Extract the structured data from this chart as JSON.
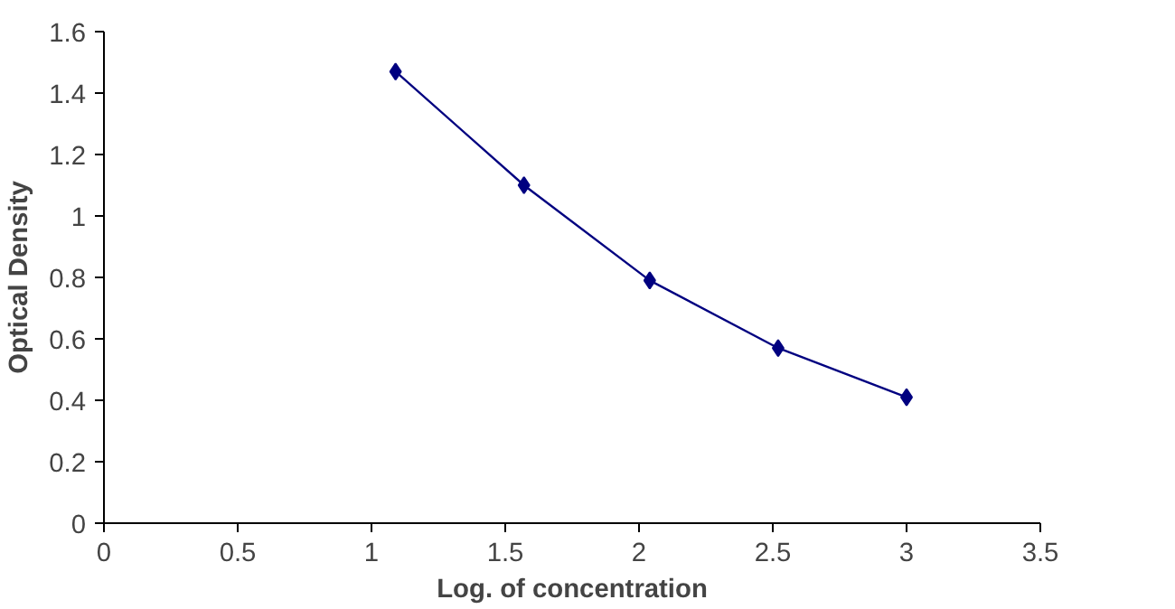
{
  "chart_data": {
    "type": "line",
    "xlabel": "Log. of concentration",
    "ylabel": "Optical Density",
    "x": [
      1.09,
      1.57,
      2.04,
      2.52,
      3.0
    ],
    "series": [
      {
        "color": "#000080",
        "values": [
          1.47,
          1.1,
          0.79,
          0.57,
          0.41
        ]
      }
    ],
    "xlim": [
      0,
      3.5
    ],
    "xticks": [
      0,
      0.5,
      1,
      1.5,
      2,
      2.5,
      3,
      3.5
    ],
    "ylim": [
      0,
      1.6
    ],
    "yticks": [
      0,
      0.2,
      0.4,
      0.6,
      0.8,
      1,
      1.2,
      1.4,
      1.6
    ],
    "marker": "diamond",
    "line_style": "solid",
    "grid": false
  }
}
